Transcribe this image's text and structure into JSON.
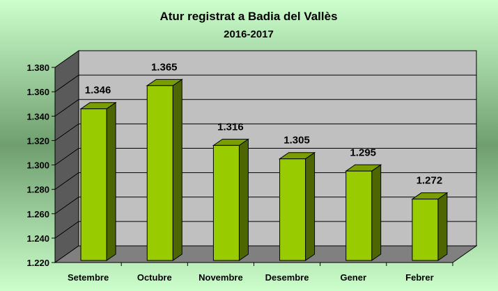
{
  "chart_data": {
    "type": "bar",
    "title": "Atur registrat a Badia del Vallès",
    "subtitle": "2016-2017",
    "categories": [
      "Setembre",
      "Octubre",
      "Novembre",
      "Desembre",
      "Gener",
      "Febrer"
    ],
    "values": [
      1346,
      1365,
      1316,
      1305,
      1295,
      1272
    ],
    "value_labels": [
      "1.346",
      "1.365",
      "1.316",
      "1.305",
      "1.295",
      "1.272"
    ],
    "ylim": [
      1220,
      1380
    ],
    "yticks": [
      1220,
      1240,
      1260,
      1280,
      1300,
      1320,
      1340,
      1360,
      1380
    ],
    "ytick_labels": [
      "1.220",
      "1.240",
      "1.260",
      "1.280",
      "1.300",
      "1.320",
      "1.340",
      "1.360",
      "1.380"
    ],
    "xlabel": "",
    "ylabel": "",
    "grid": true,
    "legend": "none",
    "style": "3d-bars",
    "colors": {
      "background_center": "#6f9e6f",
      "background_edge": "#ccffcc",
      "plot_wall": "#c0c0c0",
      "plot_floor": "#808080",
      "side_wall": "#5a5a5a",
      "bar_front": "#99cc00",
      "bar_side": "#4d6600",
      "bar_top": "#7a9e00",
      "gridline": "#000000"
    }
  }
}
